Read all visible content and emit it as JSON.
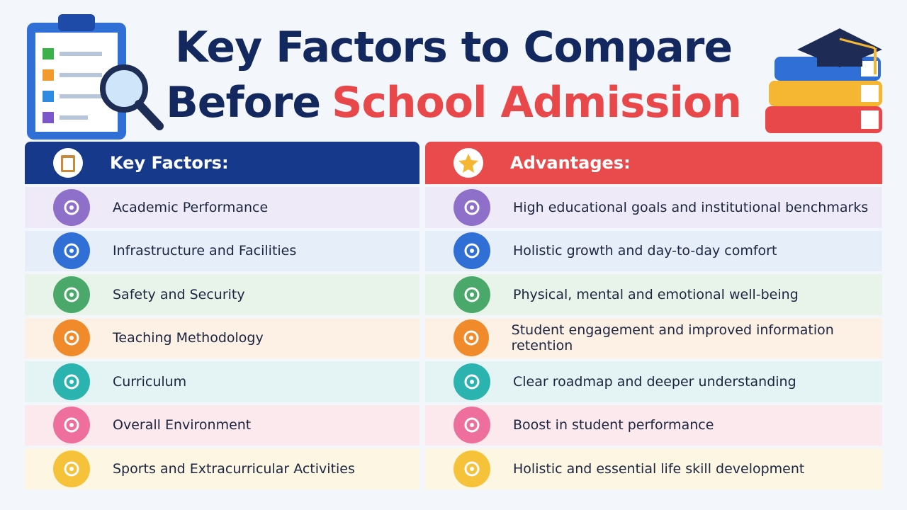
{
  "title": {
    "line1": "Key Factors to Compare",
    "line2": [
      "Before",
      "School Admission"
    ]
  },
  "table": {
    "headers": [
      "Key Factors:",
      "Advantages:"
    ],
    "rows": [
      [
        "Academic Performance",
        "High educational goals and institutional benchmarks"
      ],
      [
        "Infrastructure and Facilities",
        "Holistic growth and day-to-day comfort"
      ],
      [
        "Safety and Security",
        "Physical, mental and emotional well-being"
      ],
      [
        "Teaching Methodology",
        "Student engagement and improved information retention"
      ],
      [
        "Curriculum",
        "Clear roadmap and deeper understanding"
      ],
      [
        "Overall Environment",
        "Boost in student performance"
      ],
      [
        "Sports and Extracurricular Activities",
        "Holistic and essential life skill development"
      ]
    ]
  }
}
